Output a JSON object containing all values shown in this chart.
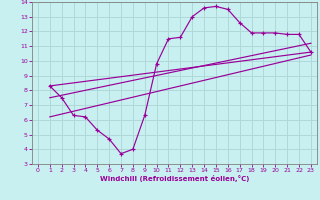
{
  "title": "Windchill (Refroidissement éolien,°C)",
  "bg_color": "#c8f0f0",
  "grid_color": "#b0d8d8",
  "line_color": "#990099",
  "xlim": [
    -0.5,
    23.5
  ],
  "ylim": [
    3,
    14
  ],
  "xticks": [
    0,
    1,
    2,
    3,
    4,
    5,
    6,
    7,
    8,
    9,
    10,
    11,
    12,
    13,
    14,
    15,
    16,
    17,
    18,
    19,
    20,
    21,
    22,
    23
  ],
  "yticks": [
    3,
    4,
    5,
    6,
    7,
    8,
    9,
    10,
    11,
    12,
    13,
    14
  ],
  "curve1_x": [
    1,
    2,
    3,
    4,
    5,
    6,
    7,
    8,
    9,
    10,
    11,
    12,
    13,
    14,
    15,
    16,
    17,
    18,
    19,
    20,
    21,
    22,
    23
  ],
  "curve1_y": [
    8.3,
    7.5,
    6.3,
    6.2,
    5.3,
    4.7,
    3.7,
    4.0,
    6.3,
    9.8,
    11.5,
    11.6,
    13.0,
    13.6,
    13.7,
    13.5,
    12.6,
    11.9,
    11.9,
    11.9,
    11.8,
    11.8,
    10.6
  ],
  "line1_x": [
    1,
    23
  ],
  "line1_y": [
    8.3,
    10.6
  ],
  "line2_x": [
    1,
    23
  ],
  "line2_y": [
    7.5,
    11.2
  ],
  "line3_x": [
    1,
    23
  ],
  "line3_y": [
    6.2,
    10.4
  ]
}
